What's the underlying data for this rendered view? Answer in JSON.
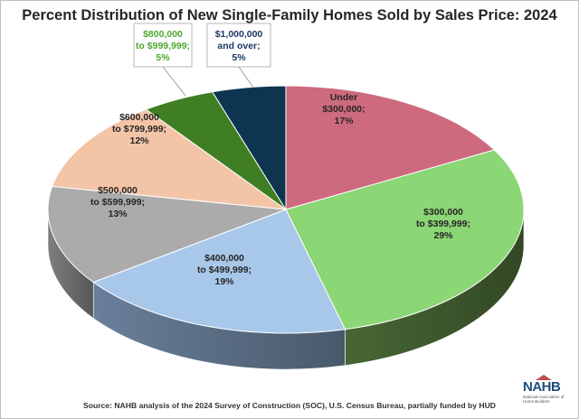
{
  "header": {
    "title": "Percent Distribution of New Single-Family Homes Sold by Sales Price: 2024"
  },
  "footer": {
    "source": "Source: NAHB analysis of the 2024 Survey of Construction (SOC), U.S. Census Bureau, partially funded by HUD",
    "logo_text": "NAHB",
    "logo_subtext": "National Association of Home Builders"
  },
  "chart_data": {
    "type": "pie",
    "title": "Percent Distribution of New Single-Family Homes Sold by Sales Price: 2024",
    "style": "3d",
    "legend": "none",
    "slices": [
      {
        "label": "Under $300,000",
        "label_lines": [
          "Under",
          "$300,000;",
          "17%"
        ],
        "value": 17,
        "color": "#cd6a7e",
        "side_color": "#8e4553",
        "text_color": "#262626"
      },
      {
        "label": "$300,000 to $399,999",
        "label_lines": [
          "$300,000",
          "to $399,999;",
          "29%"
        ],
        "value": 29,
        "color": "#8bd675",
        "side_color": "#3f5a2e",
        "text_color": "#262626"
      },
      {
        "label": "$400,000 to $499,999",
        "label_lines": [
          "$400,000",
          "to $499,999;",
          "19%"
        ],
        "value": 19,
        "color": "#a8c8ea",
        "side_color": "#5b6f86",
        "text_color": "#262626"
      },
      {
        "label": "$500,000 to $599,999",
        "label_lines": [
          "$500,000",
          "to $599,999;",
          "13%"
        ],
        "value": 13,
        "color": "#ababab",
        "side_color": "#6e6e6e",
        "text_color": "#262626"
      },
      {
        "label": "$600,000 to $799,999",
        "label_lines": [
          "$600,000",
          "to $799,999;",
          "12%"
        ],
        "value": 12,
        "color": "#f3c4a6",
        "side_color": "#b08c73",
        "text_color": "#262626"
      },
      {
        "label": "$800,000 to $999,999",
        "label_lines": [
          "$800,000",
          "to $999,999;",
          "5%"
        ],
        "value": 5,
        "color": "#3f7e23",
        "side_color": "#2a5518",
        "text_color": "#4ea72e"
      },
      {
        "label": "$1,000,000 and over",
        "label_lines": [
          "$1,000,000",
          "and over;",
          "5%"
        ],
        "value": 5,
        "color": "#0d3550",
        "side_color": "#072033",
        "text_color": "#1f3864"
      }
    ]
  }
}
